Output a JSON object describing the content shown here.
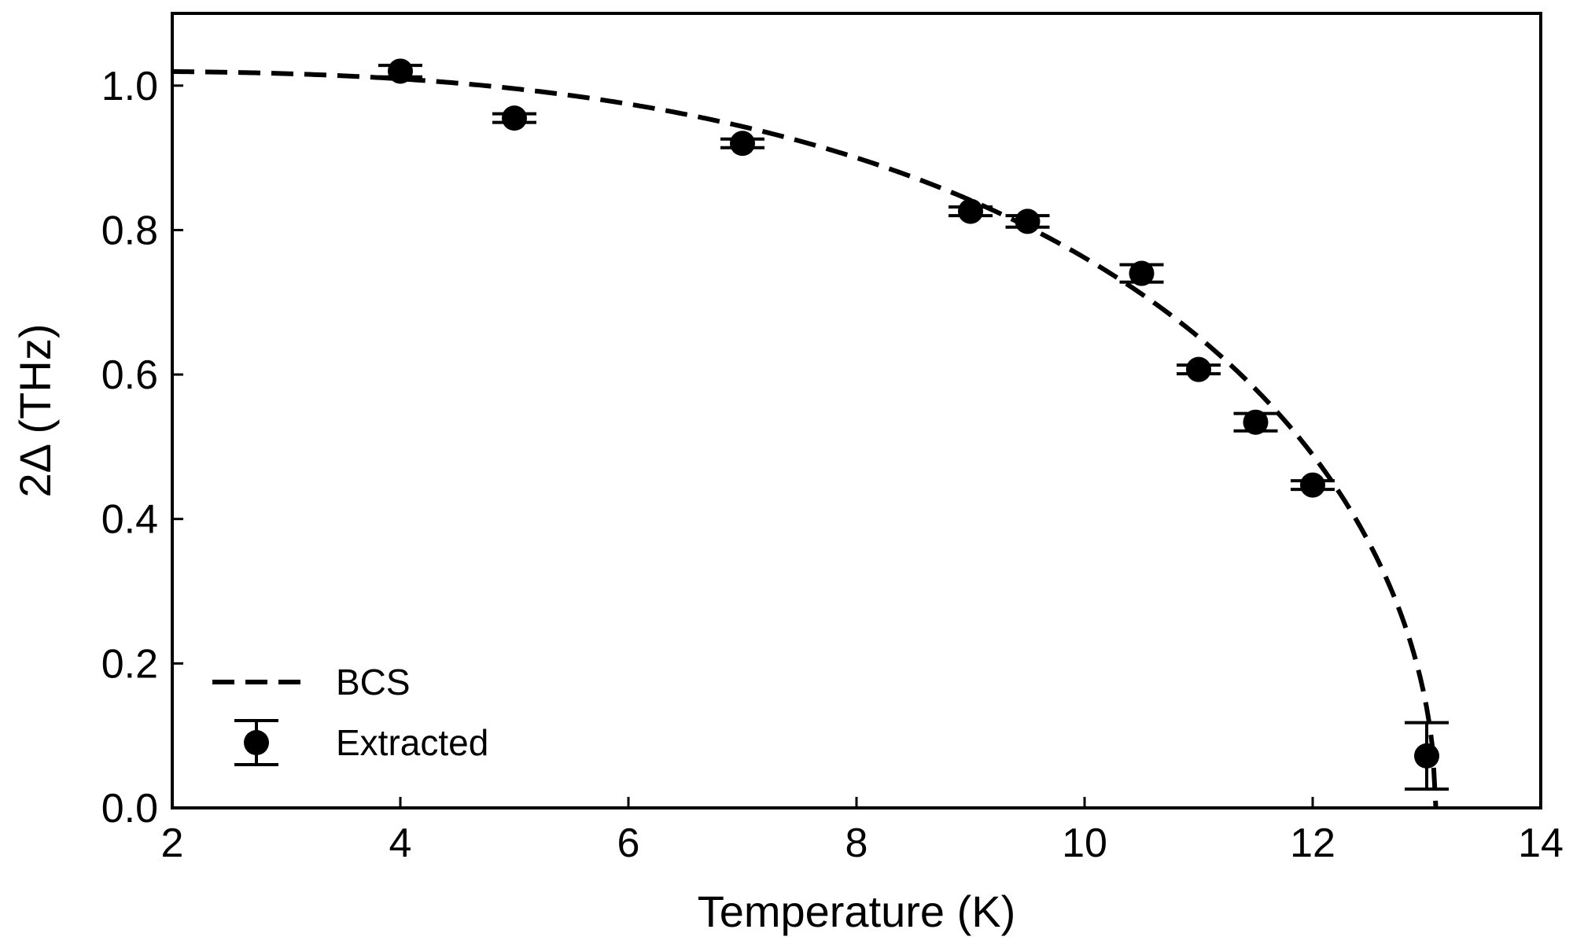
{
  "chart_data": {
    "type": "scatter",
    "title": "",
    "xlabel": "Temperature (K)",
    "ylabel": "2Δ (THz)",
    "xlim": [
      2,
      14
    ],
    "ylim": [
      0,
      1.1
    ],
    "xticks": [
      2,
      4,
      6,
      8,
      10,
      12,
      14
    ],
    "xtick_labels": [
      "2",
      "4",
      "6",
      "8",
      "10",
      "12",
      "14"
    ],
    "yticks": [
      0.0,
      0.2,
      0.4,
      0.6,
      0.8,
      1.0
    ],
    "ytick_labels": [
      "0.0",
      "0.2",
      "0.4",
      "0.6",
      "0.8",
      "1.0"
    ],
    "grid": false,
    "legend_position": "bottom-left",
    "series": [
      {
        "name": "BCS",
        "kind": "dashed-line",
        "color": "#000000",
        "model": {
          "delta0": 1.02,
          "tc": 13.08
        }
      },
      {
        "name": "Extracted",
        "kind": "points-with-errorbars",
        "color": "#000000",
        "points": [
          {
            "x": 4.0,
            "y": 1.02,
            "err": 0.008
          },
          {
            "x": 5.0,
            "y": 0.955,
            "err": 0.006
          },
          {
            "x": 7.0,
            "y": 0.92,
            "err": 0.006
          },
          {
            "x": 9.0,
            "y": 0.826,
            "err": 0.006
          },
          {
            "x": 9.5,
            "y": 0.812,
            "err": 0.008
          },
          {
            "x": 10.5,
            "y": 0.74,
            "err": 0.012
          },
          {
            "x": 11.0,
            "y": 0.607,
            "err": 0.006
          },
          {
            "x": 11.5,
            "y": 0.534,
            "err": 0.012
          },
          {
            "x": 12.0,
            "y": 0.447,
            "err": 0.006
          },
          {
            "x": 13.0,
            "y": 0.072,
            "err": 0.046
          }
        ]
      }
    ]
  }
}
